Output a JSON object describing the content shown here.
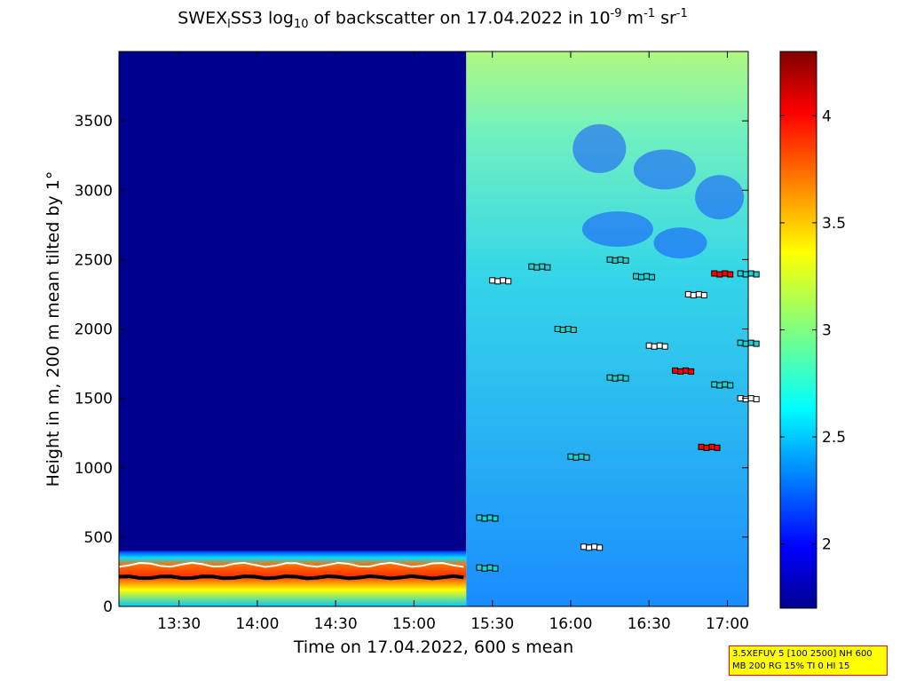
{
  "title": {
    "part1": "SWEX",
    "sub1": "l",
    "part2": "SS3 log",
    "sub2": "10",
    "part3": " of backscatter on 17.04.2022 in 10",
    "sup1": "-9",
    "part4": " m",
    "sup2": "-1",
    "part5": " sr",
    "sup3": "-1"
  },
  "settings": {
    "line1": "3.5XEFUV 5 [100 2500] NH 600",
    "line2": "MB 200 RG 15% TI 0 HI 15"
  },
  "colors": {
    "background_high_altitude_before_1520": "#00008f",
    "boundary_layer": "#ff2000",
    "clouds_overlay_markers": "#000000"
  },
  "chart_data": {
    "type": "heatmap",
    "title": "SWEXlSS3 log10 of backscatter on 17.04.2022 in 10^-9 m^-1 sr^-1",
    "xlabel": "Time on 17.04.2022, 600 s mean",
    "ylabel": "Height in m, 200 m mean tilted by 1°",
    "xlim": [
      "13:07",
      "17:08"
    ],
    "ylim": [
      0,
      4000
    ],
    "xticks": [
      "13:30",
      "14:00",
      "14:30",
      "15:00",
      "15:30",
      "16:00",
      "16:30",
      "17:00"
    ],
    "xtick_minutes": [
      810,
      840,
      870,
      900,
      930,
      960,
      990,
      1020
    ],
    "x_start_minutes": 787,
    "x_end_minutes": 1028,
    "yticks": [
      0,
      500,
      1000,
      1500,
      2000,
      2500,
      3000,
      3500
    ],
    "colorbar": {
      "range": [
        1.7,
        4.3
      ],
      "ticks": [
        2,
        2.5,
        3,
        3.5,
        4
      ],
      "colormap": "jet"
    },
    "regions": [
      {
        "name": "clear sky aloft",
        "time": [
          "13:07",
          "15:20"
        ],
        "height": [
          400,
          4000
        ],
        "value": 1.7
      },
      {
        "name": "boundary layer",
        "time": [
          "13:07",
          "15:20"
        ],
        "height": [
          0,
          400
        ],
        "value": 4.0
      },
      {
        "name": "cloud / aerosol field",
        "time": [
          "15:20",
          "17:08"
        ],
        "height": [
          0,
          4000
        ],
        "value": 2.6
      }
    ],
    "cloud_layers": [
      {
        "time": "15:30",
        "height": 2350
      },
      {
        "time": "15:45",
        "height": 2450
      },
      {
        "time": "16:15",
        "height": 2500
      },
      {
        "time": "16:25",
        "height": 2380
      },
      {
        "time": "16:45",
        "height": 2250
      },
      {
        "time": "16:55",
        "height": 2400
      },
      {
        "time": "17:05",
        "height": 2400
      },
      {
        "time": "15:55",
        "height": 2000
      },
      {
        "time": "16:30",
        "height": 1880
      },
      {
        "time": "17:05",
        "height": 1900
      },
      {
        "time": "16:40",
        "height": 1700
      },
      {
        "time": "16:55",
        "height": 1600
      },
      {
        "time": "17:05",
        "height": 1500
      },
      {
        "time": "16:00",
        "height": 1080
      },
      {
        "time": "16:15",
        "height": 1650
      },
      {
        "time": "16:50",
        "height": 1150
      },
      {
        "time": "16:05",
        "height": 430
      },
      {
        "time": "15:25",
        "height": 640
      },
      {
        "time": "15:25",
        "height": 280
      }
    ]
  }
}
